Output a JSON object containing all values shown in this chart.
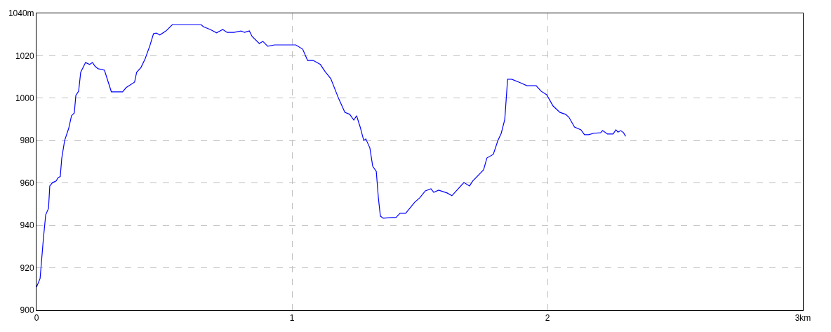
{
  "chart_data": {
    "type": "line",
    "x": [
      0,
      0.014,
      0.027,
      0.036,
      0.047,
      0.052,
      0.063,
      0.077,
      0.085,
      0.093,
      0.099,
      0.11,
      0.126,
      0.137,
      0.148,
      0.154,
      0.165,
      0.173,
      0.192,
      0.208,
      0.219,
      0.23,
      0.241,
      0.266,
      0.293,
      0.337,
      0.351,
      0.384,
      0.392,
      0.409,
      0.425,
      0.444,
      0.458,
      0.469,
      0.483,
      0.507,
      0.532,
      0.644,
      0.653,
      0.68,
      0.705,
      0.729,
      0.746,
      0.773,
      0.801,
      0.814,
      0.833,
      0.844,
      0.872,
      0.886,
      0.905,
      0.932,
      1.015,
      1.042,
      1.061,
      1.083,
      1.111,
      1.13,
      1.152,
      1.182,
      1.207,
      1.226,
      1.242,
      1.253,
      1.267,
      1.281,
      1.289,
      1.305,
      1.316,
      1.33,
      1.338,
      1.346,
      1.357,
      1.393,
      1.407,
      1.423,
      1.445,
      1.481,
      1.5,
      1.522,
      1.544,
      1.555,
      1.574,
      1.607,
      1.626,
      1.673,
      1.695,
      1.708,
      1.75,
      1.763,
      1.788,
      1.806,
      1.819,
      1.833,
      1.844,
      1.86,
      1.893,
      1.92,
      1.956,
      1.975,
      1.997,
      2.022,
      2.049,
      2.071,
      2.084,
      2.106,
      2.131,
      2.145,
      2.161,
      2.18,
      2.208,
      2.216,
      2.235,
      2.257,
      2.268,
      2.276,
      2.287,
      2.298,
      2.306
    ],
    "series": [
      {
        "color": "#0000ff",
        "values": [
          910.9,
          914.9,
          933.8,
          945,
          948,
          958.6,
          960.2,
          961,
          962.6,
          963,
          971.8,
          980,
          985.7,
          991.7,
          993,
          1001.3,
          1003.3,
          1012.2,
          1016.8,
          1015.9,
          1016.8,
          1014.9,
          1013.9,
          1013.2,
          1003,
          1003,
          1005,
          1007.6,
          1012.2,
          1014.5,
          1018.5,
          1024.8,
          1030.4,
          1030.7,
          1029.8,
          1031.7,
          1034.7,
          1034.7,
          1033.7,
          1032.4,
          1030.8,
          1032.4,
          1031,
          1031,
          1031.7,
          1031,
          1031.7,
          1029.1,
          1025.8,
          1026.8,
          1024.5,
          1025.1,
          1025.1,
          1023.1,
          1017.8,
          1017.8,
          1015.9,
          1012.5,
          1009.2,
          1000,
          993.3,
          992.4,
          989.7,
          991.7,
          986.4,
          980,
          980.8,
          976.5,
          967.9,
          965.5,
          953.3,
          944.4,
          943.4,
          943.7,
          943.7,
          945.7,
          945.7,
          951,
          953,
          956.3,
          957.3,
          955.6,
          956.6,
          955.3,
          954,
          960.2,
          958.6,
          961,
          966.2,
          971.8,
          973.5,
          980,
          983.4,
          990,
          1008.9,
          1008.9,
          1007.3,
          1005.9,
          1005.9,
          1003.3,
          1001.6,
          996.3,
          993.3,
          992.4,
          991,
          986.4,
          985.1,
          982.8,
          982.8,
          983.4,
          983.7,
          984.7,
          983.1,
          983.1,
          985.1,
          984,
          984.7,
          983.7,
          982
        ]
      }
    ],
    "xlim": [
      0,
      3
    ],
    "xticks": [
      0,
      1,
      2,
      {
        "value": 3,
        "label": "3km"
      }
    ],
    "ylim": [
      900,
      1040
    ],
    "yticks": [
      900,
      920,
      940,
      960,
      980,
      1000,
      1020,
      {
        "value": 1040,
        "label": "1040m"
      }
    ],
    "grid": true,
    "marker": "none",
    "line_style": "solid"
  }
}
